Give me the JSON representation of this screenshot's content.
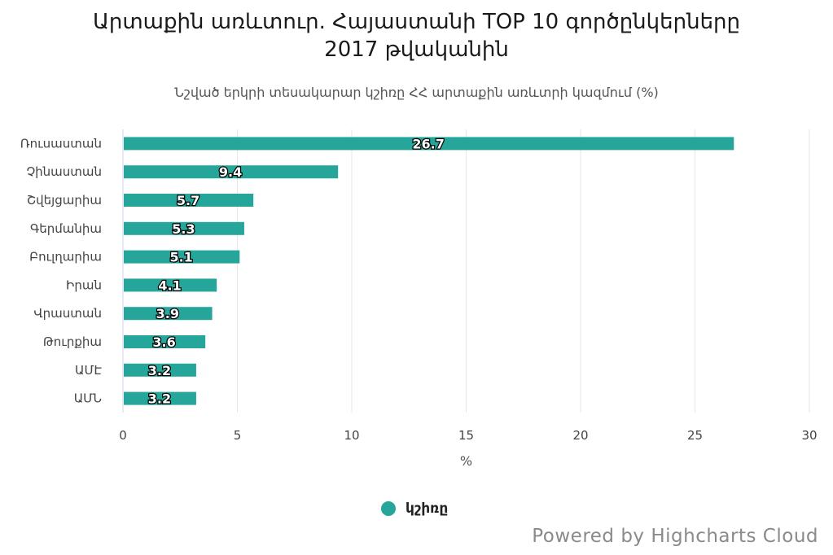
{
  "chart_data": {
    "type": "bar",
    "orientation": "horizontal",
    "title": "Արտաքին առևտուր. Հայաստանի TOP 10 գործընկերները 2017 թվականին",
    "title_lines": [
      "Արտաքին առևտուր. Հայաստանի TOP 10 գործընկերները",
      "2017 թվականին"
    ],
    "subtitle": "Նշված երկրի տեսակարար կշիռը ՀՀ արտաքին առևտրի կազմում (%)",
    "categories": [
      "Ռուսաստան",
      "Չինաստան",
      "Շվեյցարիա",
      "Գերմանիա",
      "Բուլղարիա",
      "Իրան",
      "Վրաստան",
      "Թուրքիա",
      "ԱՄԷ",
      "ԱՄՆ"
    ],
    "series": [
      {
        "name": "կշիռը",
        "values": [
          26.7,
          9.4,
          5.7,
          5.3,
          5.1,
          4.1,
          3.9,
          3.6,
          3.2,
          3.2
        ],
        "color": "#26a69a"
      }
    ],
    "xlabel": "%",
    "xlim": [
      0,
      30
    ],
    "xticks": [
      0,
      5,
      10,
      15,
      20,
      25,
      30
    ],
    "grid": true,
    "data_labels": true,
    "legend": "bottom-center"
  },
  "credits": "Powered by Highcharts Cloud",
  "colors": {
    "bar": "#26a69a",
    "grid": "#e6e6e6",
    "axis_text": "#444444"
  }
}
